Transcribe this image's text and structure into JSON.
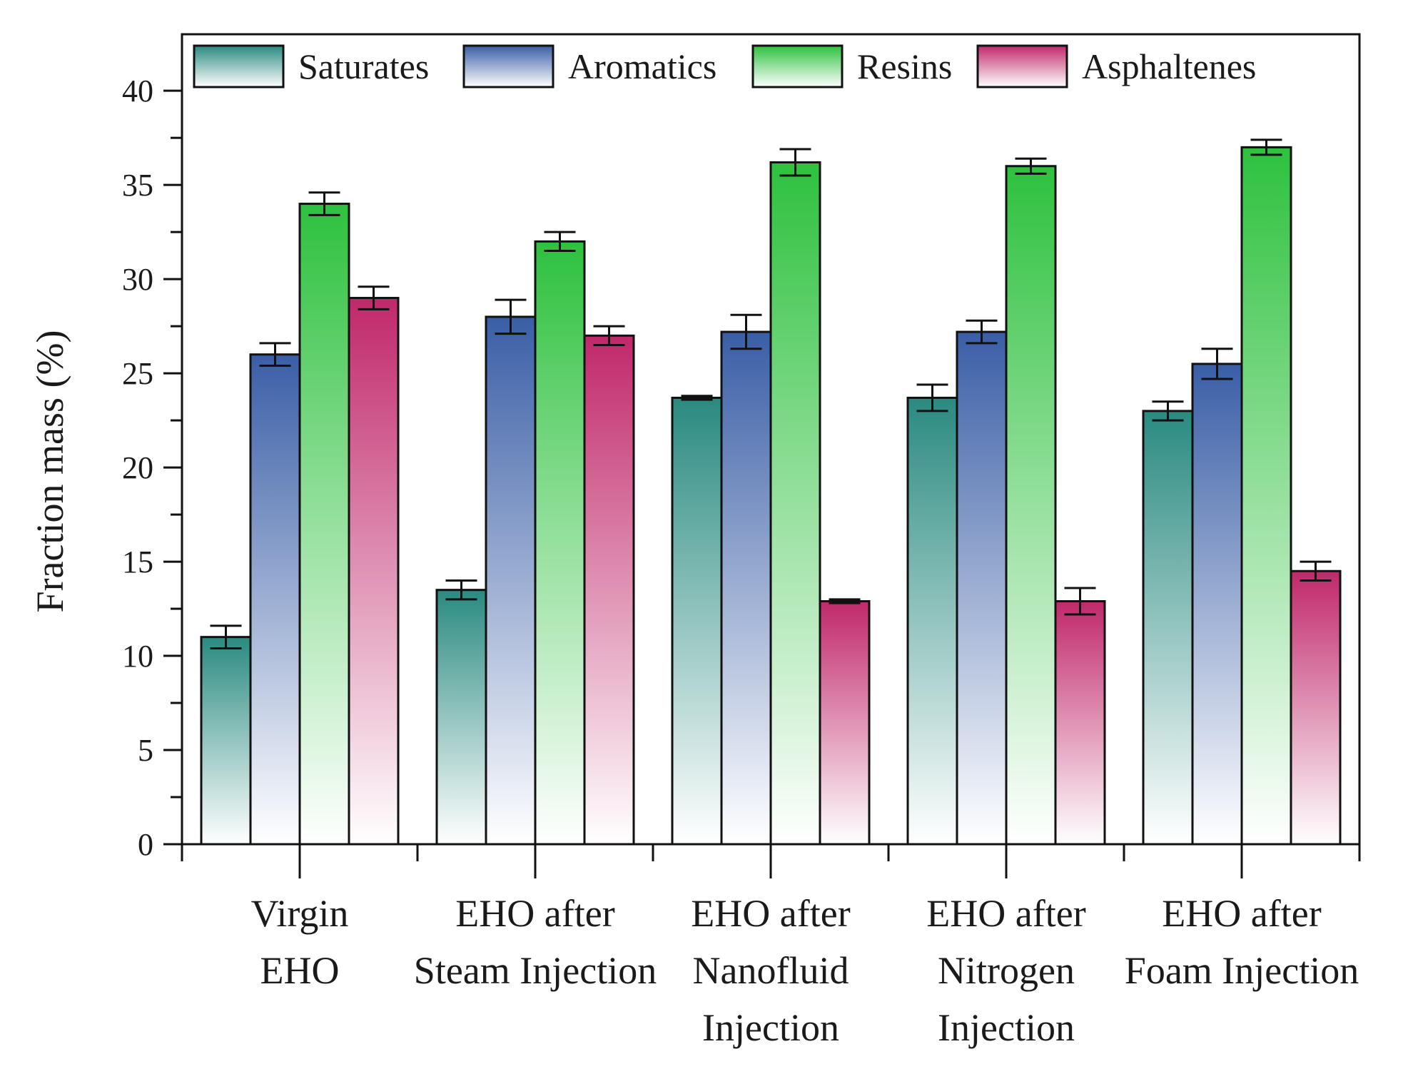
{
  "chart_data": {
    "type": "bar",
    "title": "",
    "xlabel": "",
    "ylabel": "Fraction mass (%)",
    "ylim": [
      0,
      43
    ],
    "yticks": [
      "0",
      "5",
      "10",
      "15",
      "20",
      "25",
      "30",
      "35",
      "40"
    ],
    "categories": [
      [
        "Virgin",
        "EHO"
      ],
      [
        "EHO after",
        "Steam Injection"
      ],
      [
        "EHO after",
        "Nanofluid",
        "Injection"
      ],
      [
        "EHO after",
        "Nitrogen",
        "Injection"
      ],
      [
        "EHO after",
        "Foam Injection"
      ]
    ],
    "legend_position": "top",
    "series": [
      {
        "name": "Saturates",
        "values": [
          11.0,
          13.5,
          23.7,
          23.7,
          23.0
        ],
        "errors": [
          0.6,
          0.5,
          0.1,
          0.7,
          0.5
        ],
        "color": "#2a8a80"
      },
      {
        "name": "Aromatics",
        "values": [
          26.0,
          28.0,
          27.2,
          27.2,
          25.5
        ],
        "errors": [
          0.6,
          0.9,
          0.9,
          0.6,
          0.8
        ],
        "color": "#3a5ea6"
      },
      {
        "name": "Resins",
        "values": [
          34.0,
          32.0,
          36.2,
          36.0,
          37.0
        ],
        "errors": [
          0.6,
          0.5,
          0.7,
          0.4,
          0.4
        ],
        "color": "#2ec13e"
      },
      {
        "name": "Asphaltenes",
        "values": [
          29.0,
          27.0,
          12.9,
          12.9,
          14.5
        ],
        "errors": [
          0.6,
          0.5,
          0.1,
          0.7,
          0.5
        ],
        "color": "#c0286a"
      }
    ]
  }
}
